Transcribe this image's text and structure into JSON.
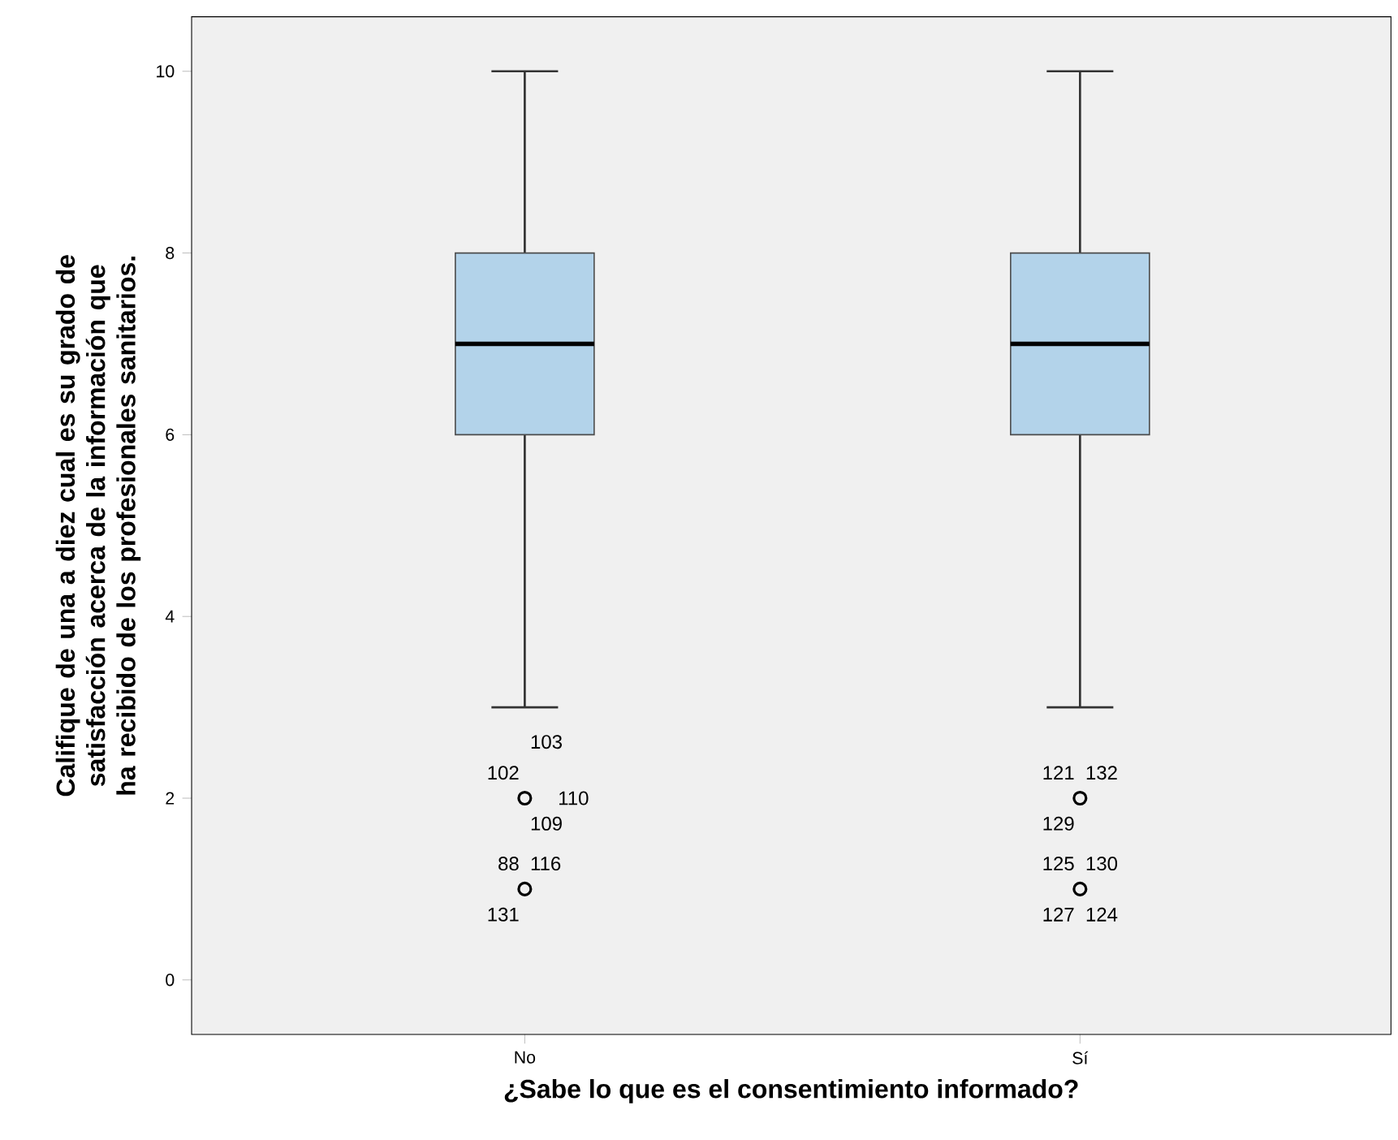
{
  "chart_data": {
    "type": "box",
    "xlabel": "¿Sabe lo que es el consentimiento informado?",
    "ylabel": "Califique de una a diez cual es su grado de satisfacción acerca de la información que ha recibido de los profesionales sanitarios.",
    "categories": [
      "No",
      "Sí"
    ],
    "series": [
      {
        "color": "#b3d3ea",
        "boxes": [
          {
            "low": 3,
            "q1": 6,
            "median": 7,
            "q3": 8,
            "high": 10,
            "outliers": [
              2,
              1
            ]
          },
          {
            "low": 3,
            "q1": 6,
            "median": 7,
            "q3": 8,
            "high": 10,
            "outliers": [
              2,
              1
            ]
          }
        ]
      }
    ],
    "ylim": [
      -0.6,
      10.6
    ],
    "yticks": [
      0,
      2,
      4,
      6,
      8,
      10
    ],
    "annotations": [
      "102",
      "103",
      "110",
      "109",
      "88",
      "116",
      "131",
      "121",
      "132",
      "129",
      "125",
      "130",
      "127",
      "124"
    ]
  }
}
